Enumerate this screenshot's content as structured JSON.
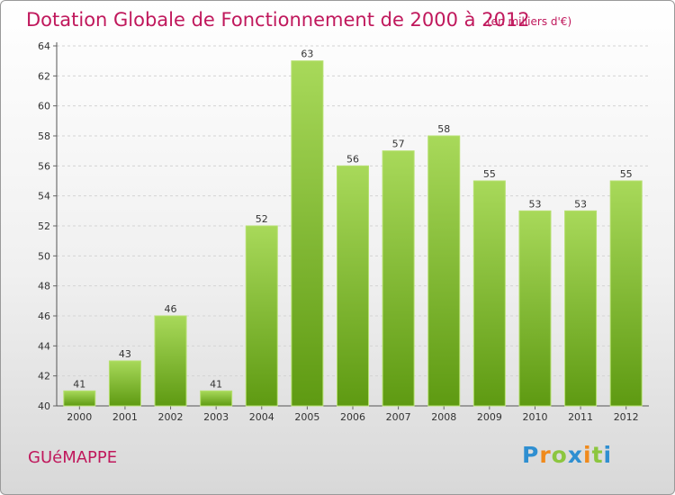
{
  "header": {
    "title": "Dotation Globale de Fonctionnement de 2000 à 2012",
    "unit": "(en milliers d'€)"
  },
  "footer": {
    "commune": "GUéMAPPE",
    "logo": {
      "letters": [
        "P",
        "r",
        "o",
        "x",
        "i",
        "t",
        "i"
      ],
      "colors": [
        "#2f8fd1",
        "#f08a1c",
        "#8cc63f",
        "#2f8fd1",
        "#f08a1c",
        "#8cc63f",
        "#2f8fd1"
      ]
    }
  },
  "chart_data": {
    "type": "bar",
    "title": "Dotation Globale de Fonctionnement de 2000 à 2012",
    "unit": "(en milliers d'€)",
    "categories": [
      "2000",
      "2001",
      "2002",
      "2003",
      "2004",
      "2005",
      "2006",
      "2007",
      "2008",
      "2009",
      "2010",
      "2011",
      "2012"
    ],
    "values": [
      41,
      43,
      46,
      41,
      52,
      63,
      56,
      57,
      58,
      55,
      53,
      53,
      55
    ],
    "ylim": [
      40,
      64
    ],
    "yticks": [
      40,
      42,
      44,
      46,
      48,
      50,
      52,
      54,
      56,
      58,
      60,
      62,
      64
    ],
    "grid": true,
    "bar_color": "#7fbf2e",
    "bar_color_light": "#a8d95a",
    "bar_color_dark": "#5e9a12"
  }
}
